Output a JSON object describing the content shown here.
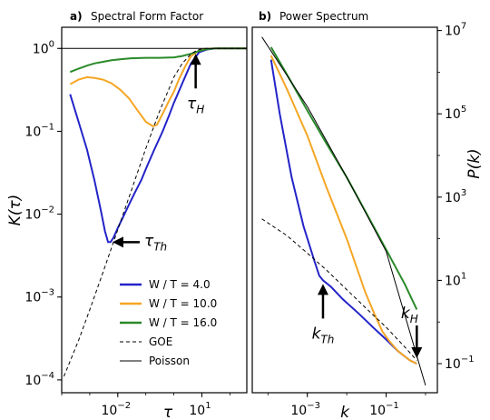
{
  "chart_data": [
    {
      "type": "line",
      "panel_letter": "a)",
      "title": "Spectral Form Factor",
      "xlabel": "τ",
      "ylabel": "K(τ)",
      "xscale": "log",
      "yscale": "log",
      "xlim": [
        0.0001,
        400
      ],
      "ylim": [
        7e-05,
        1.8
      ],
      "xticks": [
        {
          "value": 0.01,
          "base": "10",
          "exp": "−2"
        },
        {
          "value": 10,
          "base": "10",
          "exp": "1"
        }
      ],
      "yticks": [
        {
          "value": 1,
          "label": "10",
          "exp": "0"
        },
        {
          "value": 0.1,
          "label": "10",
          "exp": "−1"
        },
        {
          "value": 0.01,
          "label": "10",
          "exp": "−2"
        },
        {
          "value": 0.001,
          "label": "10",
          "exp": "−3"
        },
        {
          "value": 0.0001,
          "label": "10",
          "exp": "−4"
        }
      ],
      "grid": false,
      "legend_position": "bottom-right",
      "series": [
        {
          "name": "W / T = 4.0",
          "color": "#2323c8",
          "style": "solid",
          "x": [
            0.0002,
            0.0004,
            0.0008,
            0.0015,
            0.0025,
            0.0035,
            0.0045,
            0.0055,
            0.007,
            0.01,
            0.015,
            0.025,
            0.04,
            0.07,
            0.1,
            0.2,
            0.4,
            0.7,
            1,
            2,
            4,
            8,
            15,
            30,
            60,
            120,
            250,
            400
          ],
          "y": [
            0.28,
            0.13,
            0.06,
            0.025,
            0.011,
            0.0062,
            0.0046,
            0.0046,
            0.0052,
            0.0068,
            0.009,
            0.013,
            0.018,
            0.026,
            0.035,
            0.06,
            0.1,
            0.16,
            0.22,
            0.38,
            0.65,
            0.9,
            0.97,
            1,
            1,
            1,
            1,
            1
          ]
        },
        {
          "name": "W / T = 10.0",
          "color": "#f5a623",
          "style": "solid",
          "x": [
            0.0002,
            0.0004,
            0.0008,
            0.0015,
            0.003,
            0.006,
            0.012,
            0.025,
            0.05,
            0.1,
            0.18,
            0.25,
            0.35,
            0.5,
            0.7,
            1,
            1.5,
            2.5,
            4,
            8,
            15,
            30,
            60,
            120,
            250,
            400
          ],
          "y": [
            0.37,
            0.42,
            0.45,
            0.44,
            0.42,
            0.38,
            0.32,
            0.25,
            0.18,
            0.13,
            0.115,
            0.12,
            0.15,
            0.19,
            0.24,
            0.3,
            0.42,
            0.6,
            0.8,
            0.95,
            0.99,
            1,
            1,
            1,
            1,
            1
          ]
        },
        {
          "name": "W / T = 16.0",
          "color": "#2a8a2a",
          "style": "solid",
          "x": [
            0.0002,
            0.0004,
            0.0008,
            0.0015,
            0.003,
            0.006,
            0.012,
            0.03,
            0.1,
            0.3,
            1,
            2,
            4,
            8,
            15,
            30,
            60,
            120,
            250,
            400
          ],
          "y": [
            0.52,
            0.57,
            0.62,
            0.66,
            0.69,
            0.72,
            0.74,
            0.76,
            0.77,
            0.77,
            0.78,
            0.81,
            0.86,
            0.93,
            0.98,
            1,
            1,
            1,
            1,
            1
          ]
        },
        {
          "name": "GOE",
          "color": "#000000",
          "style": "dashed",
          "x": [
            0.00012,
            0.0004,
            0.001,
            0.003,
            0.01,
            0.03,
            0.1,
            0.3,
            1,
            2,
            4,
            6,
            8,
            12,
            20,
            40,
            100,
            400
          ],
          "y": [
            0.00011,
            0.0003,
            0.0007,
            0.002,
            0.0065,
            0.019,
            0.062,
            0.17,
            0.45,
            0.66,
            0.85,
            0.93,
            0.97,
            1,
            1,
            1,
            1,
            1
          ]
        },
        {
          "name": "Poisson",
          "color": "#000000",
          "style": "solid",
          "x": [
            0.0001,
            400
          ],
          "y": [
            1,
            1
          ]
        }
      ],
      "annotations": [
        {
          "text": "τ",
          "sub": "Th",
          "at_x": 0.0048,
          "at_y": 0.0046
        },
        {
          "text": "τ",
          "sub": "H",
          "at_x": 6,
          "at_y": 0.95
        }
      ]
    },
    {
      "type": "line",
      "panel_letter": "b)",
      "title": "Power Spectrum",
      "xlabel": "k",
      "ylabel": "P(k)",
      "xscale": "log",
      "yscale": "log",
      "xlim": [
        4e-05,
        2
      ],
      "ylim": [
        0.02,
        12000000
      ],
      "xticks": [
        {
          "value": 0.001,
          "base": "10",
          "exp": "−3"
        },
        {
          "value": 0.1,
          "base": "10",
          "exp": "−1"
        }
      ],
      "yticks": [
        {
          "value": 10000000,
          "label": "10",
          "exp": "7"
        },
        {
          "value": 100000,
          "label": "10",
          "exp": "5"
        },
        {
          "value": 1000,
          "label": "10",
          "exp": "3"
        },
        {
          "value": 10,
          "label": "10",
          "exp": "1"
        },
        {
          "value": 0.1,
          "label": "10",
          "exp": "−1"
        }
      ],
      "grid": false,
      "series": [
        {
          "name": "W / T = 4.0",
          "color": "#2323c8",
          "style": "solid",
          "x": [
            0.00012,
            0.0002,
            0.0004,
            0.0008,
            0.0015,
            0.002,
            0.0025,
            0.004,
            0.008,
            0.02,
            0.05,
            0.1,
            0.2,
            0.4,
            0.6
          ],
          "y": [
            2000000,
            100000,
            3000,
            200,
            30,
            13,
            10,
            7,
            3.5,
            1.6,
            0.7,
            0.38,
            0.2,
            0.12,
            0.1
          ]
        },
        {
          "name": "W / T = 10.0",
          "color": "#f5a623",
          "style": "solid",
          "x": [
            0.00012,
            0.0003,
            0.001,
            0.003,
            0.01,
            0.03,
            0.05,
            0.08,
            0.12,
            0.2,
            0.4,
            0.6
          ],
          "y": [
            2500000,
            400000,
            30000,
            1800,
            100,
            5,
            1.6,
            0.6,
            0.35,
            0.2,
            0.12,
            0.1
          ]
        },
        {
          "name": "W / T = 16.0",
          "color": "#2a8a2a",
          "style": "solid",
          "x": [
            0.00012,
            0.0003,
            0.001,
            0.003,
            0.01,
            0.03,
            0.1,
            0.3,
            0.6
          ],
          "y": [
            4000000,
            900000,
            120000,
            20000,
            3000,
            450,
            55,
            8,
            2
          ]
        },
        {
          "name": "GOE",
          "color": "#000000",
          "style": "dashed",
          "x": [
            7e-05,
            0.0003,
            0.001,
            0.003,
            0.01,
            0.03,
            0.1,
            0.3,
            0.6
          ],
          "y": [
            300,
            120,
            45,
            18,
            6,
            2.2,
            0.75,
            0.25,
            0.12
          ]
        },
        {
          "name": "Poisson",
          "color": "#000000",
          "style": "solid",
          "x": [
            7e-05,
            0.001,
            0.01,
            0.1,
            1
          ],
          "y": [
            7000000,
            150000,
            3000,
            50,
            0.03
          ]
        }
      ],
      "annotations": [
        {
          "text": "k",
          "sub": "Th",
          "at_x": 0.0025,
          "at_y": 10
        },
        {
          "text": "k",
          "sub": "H",
          "at_x": 0.6,
          "at_y": 0.1
        }
      ]
    }
  ]
}
